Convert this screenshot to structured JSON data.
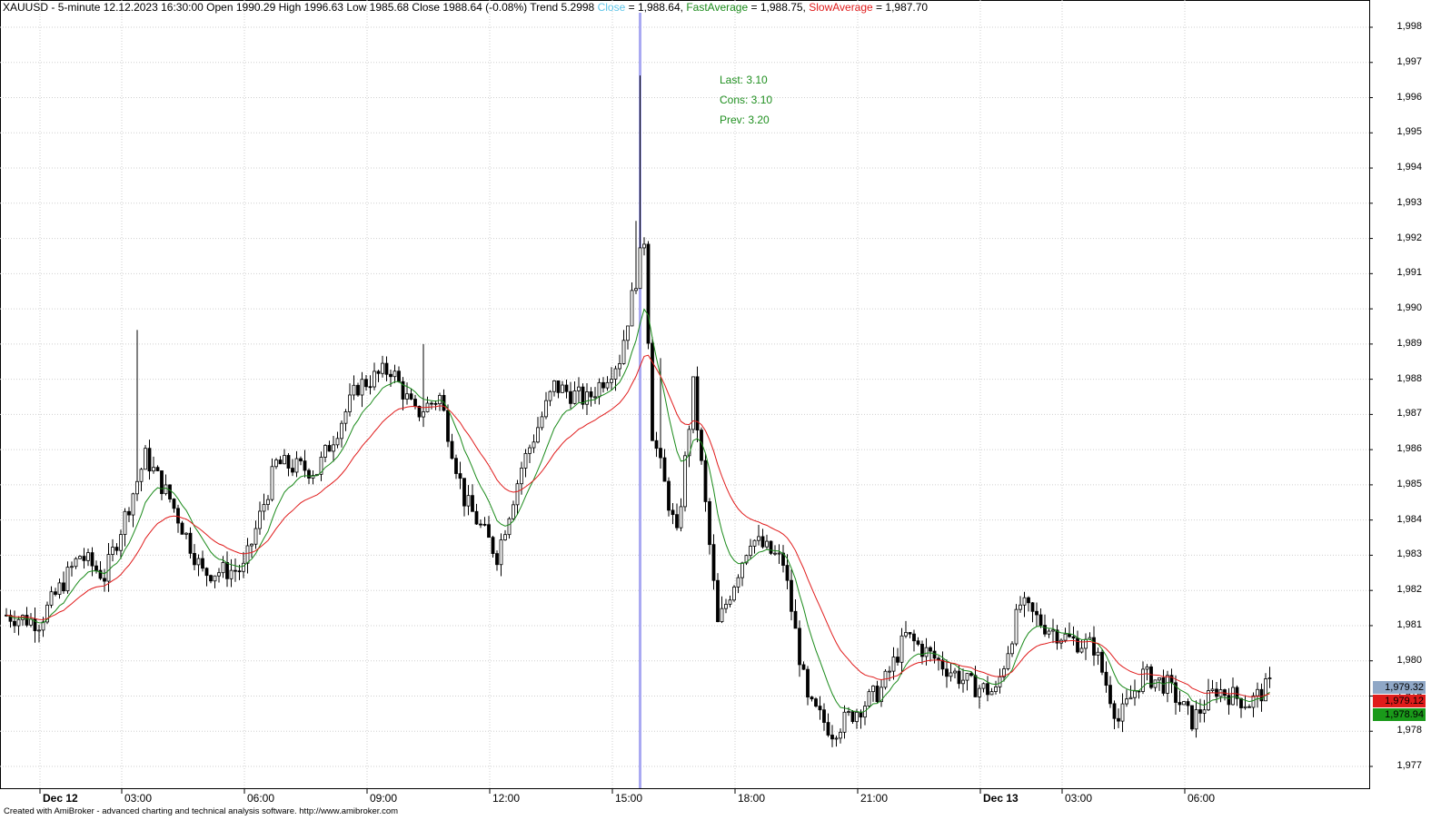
{
  "header": {
    "symbol": "XAUUSD",
    "separator": " - ",
    "timeframe": "5-minute",
    "datetime": "12.12.2023 16:30:00",
    "open": "Open 1990.29",
    "high": "High 1996.63",
    "low": "Low 1985.68",
    "close": "Close 1988.64 (-0.08%)",
    "trend": "Trend 5.2998",
    "close_name": "Close",
    "close_val": " = 1,988.64, ",
    "fast_name": "FastAverage",
    "fast_val": " = 1,988.75, ",
    "slow_name": "SlowAverage",
    "slow_val": " = 1,987.70"
  },
  "annotation": {
    "last": "Last: 3.10",
    "cons": "Cons: 3.10",
    "prev": "Prev: 3.20"
  },
  "footer": "Created with AmiBroker - advanced charting and technical analysis software. http://www.amibroker.com",
  "price_labels": [
    {
      "text": "1,979.32",
      "color": "#8fa7c6",
      "value": 1979.32
    },
    {
      "text": "1,979.12",
      "color": "#e01b1b",
      "value": 1979.12
    },
    {
      "text": "1,978.94",
      "color": "#1a9a1a",
      "value": 1978.94
    }
  ],
  "colors": {
    "close": "#5ec5e8",
    "fast": "#1a8a1a",
    "slow": "#e01b1b",
    "marker": "#a9a9f2",
    "candle": "#000000",
    "grid": "#cfcfcf"
  },
  "chart_data": {
    "type": "candlestick",
    "ylim": [
      1976.5,
      1998.5
    ],
    "y_ticks": [
      "1,977",
      "1,978",
      "1,979",
      "1,980",
      "1,981",
      "1,982",
      "1,983",
      "1,984",
      "1,985",
      "1,986",
      "1,987",
      "1,988",
      "1,989",
      "1,990",
      "1,991",
      "1,992",
      "1,993",
      "1,994",
      "1,995",
      "1,996",
      "1,997",
      "1,998"
    ],
    "x_ticks": [
      {
        "label": "Dec 12",
        "bold": true,
        "bar": 0
      },
      {
        "label": "03:00",
        "bold": false,
        "bar": 20
      },
      {
        "label": "06:00",
        "bold": false,
        "bar": 50
      },
      {
        "label": "09:00",
        "bold": false,
        "bar": 80
      },
      {
        "label": "12:00",
        "bold": false,
        "bar": 110
      },
      {
        "label": "15:00",
        "bold": false,
        "bar": 140
      },
      {
        "label": "18:00",
        "bold": false,
        "bar": 170
      },
      {
        "label": "21:00",
        "bold": false,
        "bar": 200
      },
      {
        "label": "Dec 13",
        "bold": true,
        "bar": 230
      },
      {
        "label": "03:00",
        "bold": false,
        "bar": 250
      },
      {
        "label": "06:00",
        "bold": false,
        "bar": 280
      }
    ],
    "marker_bar": 155,
    "bar_count": 310,
    "anchors": [
      [
        0,
        1981.3
      ],
      [
        8,
        1981.1
      ],
      [
        18,
        1983.0
      ],
      [
        24,
        1982.4
      ],
      [
        34,
        1985.8
      ],
      [
        40,
        1984.6
      ],
      [
        48,
        1982.5
      ],
      [
        58,
        1982.6
      ],
      [
        66,
        1985.6
      ],
      [
        76,
        1985.4
      ],
      [
        86,
        1987.8
      ],
      [
        94,
        1988.3
      ],
      [
        100,
        1987.0
      ],
      [
        106,
        1987.5
      ],
      [
        112,
        1984.6
      ],
      [
        120,
        1983.0
      ],
      [
        126,
        1985.5
      ],
      [
        134,
        1987.8
      ],
      [
        142,
        1987.4
      ],
      [
        150,
        1988.6
      ],
      [
        156,
        1992.0
      ],
      [
        158,
        1986.5
      ],
      [
        164,
        1983.5
      ],
      [
        168,
        1987.8
      ],
      [
        174,
        1981.0
      ],
      [
        182,
        1983.5
      ],
      [
        190,
        1982.8
      ],
      [
        196,
        1978.8
      ],
      [
        202,
        1978.0
      ],
      [
        208,
        1978.6
      ],
      [
        214,
        1979.2
      ],
      [
        220,
        1980.7
      ],
      [
        230,
        1979.8
      ],
      [
        236,
        1979.3
      ],
      [
        242,
        1979.1
      ],
      [
        248,
        1981.6
      ],
      [
        254,
        1981.0
      ],
      [
        260,
        1980.6
      ],
      [
        266,
        1980.4
      ],
      [
        272,
        1978.3
      ],
      [
        278,
        1979.6
      ],
      [
        284,
        1979.3
      ],
      [
        290,
        1978.3
      ],
      [
        296,
        1979.2
      ],
      [
        304,
        1978.8
      ],
      [
        309,
        1979.3
      ]
    ],
    "spikes": [
      [
        32,
        1989.4
      ],
      [
        155,
        1996.63
      ],
      [
        154,
        1992.5
      ],
      [
        160,
        1988.6
      ],
      [
        102,
        1989.0
      ]
    ]
  }
}
